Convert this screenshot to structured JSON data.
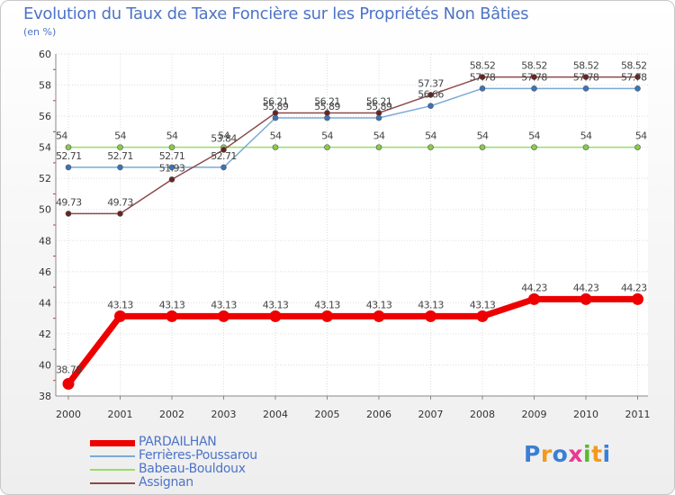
{
  "title": "Evolution du Taux de Taxe Foncière sur les Propriétés Non Bâties",
  "unit_label": "(en %)",
  "brand": "Proxiti",
  "chart_data": {
    "type": "line",
    "title": "Evolution du Taux de Taxe Foncière sur les Propriétés Non Bâties",
    "xlabel": "",
    "ylabel": "(en %)",
    "x": [
      "2000",
      "2001",
      "2002",
      "2003",
      "2004",
      "2005",
      "2006",
      "2007",
      "2008",
      "2009",
      "2010",
      "2011"
    ],
    "ylim": [
      38,
      60
    ],
    "yticks": [
      38,
      40,
      42,
      44,
      46,
      48,
      50,
      52,
      54,
      56,
      58,
      60
    ],
    "grid": true,
    "legend_position": "bottom-left",
    "series": [
      {
        "name": "PARDAILHAN",
        "color": "#ee0000",
        "values": [
          38.78,
          43.13,
          43.13,
          43.13,
          43.13,
          43.13,
          43.13,
          43.13,
          43.13,
          44.23,
          44.23,
          44.23
        ],
        "labels": [
          "38.78",
          "43.13",
          "43.13",
          "43.13",
          "43.13",
          "43.13",
          "43.13",
          "43.13",
          "43.13",
          "44.23",
          "44.23",
          "44.23"
        ]
      },
      {
        "name": "Ferrières-Poussarou",
        "color": "#7aaad6",
        "values": [
          52.71,
          52.71,
          52.71,
          52.71,
          55.89,
          55.89,
          55.89,
          56.66,
          57.78,
          57.78,
          57.78,
          57.78
        ],
        "labels": [
          "52.71",
          "52.71",
          "52.71",
          "52.71",
          "55.89",
          "55.89",
          "55.89",
          "56.66",
          "57.78",
          "57.78",
          "57.78",
          "57.78"
        ]
      },
      {
        "name": "Babeau-Bouldoux",
        "color": "#99dd66",
        "values": [
          54,
          54,
          54,
          54,
          54,
          54,
          54,
          54,
          54,
          54,
          54,
          54
        ],
        "labels": [
          "54",
          "54",
          "54",
          "54",
          "54",
          "54",
          "54",
          "54",
          "54",
          "54",
          "54",
          "54"
        ]
      },
      {
        "name": "Assignan",
        "color": "#8b4a4a",
        "values": [
          49.73,
          49.73,
          51.93,
          53.84,
          56.21,
          56.21,
          56.21,
          57.37,
          58.52,
          58.52,
          58.52,
          58.52
        ],
        "labels": [
          "49.73",
          "49.73",
          "51.93",
          "53.84",
          "56.21",
          "56.21",
          "56.21",
          "57.37",
          "58.52",
          "58.52",
          "58.52",
          "58.52"
        ]
      }
    ]
  }
}
